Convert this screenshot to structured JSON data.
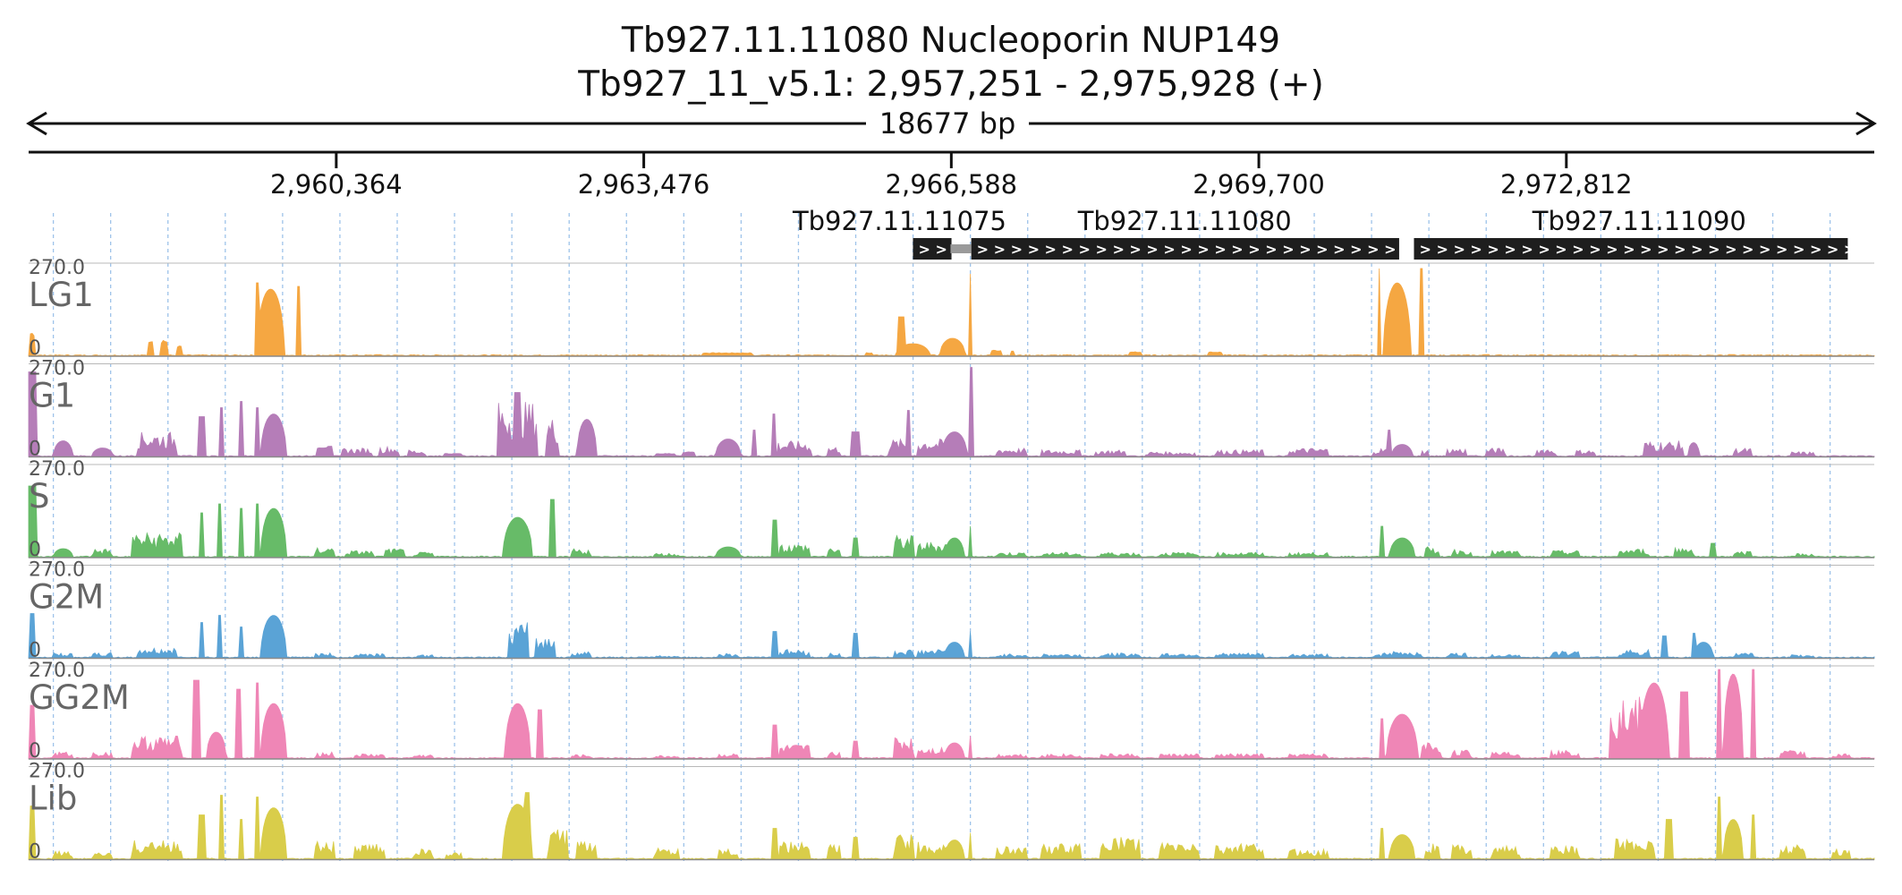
{
  "title": {
    "gene": "Tb927.11.11080  Nucleoporin NUP149",
    "locus": "Tb927_11_v5.1: 2,957,251 - 2,975,928 (+)"
  },
  "span_label": "18677 bp",
  "region": {
    "start": 2957251,
    "end": 2975928
  },
  "ticks": [
    {
      "pos": 2960364,
      "label": "2,960,364"
    },
    {
      "pos": 2963476,
      "label": "2,963,476"
    },
    {
      "pos": 2966588,
      "label": "2,966,588"
    },
    {
      "pos": 2969700,
      "label": "2,969,700"
    },
    {
      "pos": 2972812,
      "label": "2,972,812"
    }
  ],
  "genes": [
    {
      "id": "Tb927.11.11075",
      "label": "Tb927.11.11075",
      "start": 2966200,
      "end": 2966590,
      "strand": "+"
    },
    {
      "id": "Tb927.11.11080",
      "label": "Tb927.11.11080",
      "start": 2966790,
      "end": 2971120,
      "strand": "+"
    },
    {
      "id": "Tb927.11.11090",
      "label": "Tb927.11.11090",
      "start": 2971270,
      "end": 2975660,
      "strand": "+"
    }
  ],
  "gene_stub": {
    "start": 2966580,
    "end": 2966790
  },
  "tracks": [
    {
      "name": "LG1",
      "color": "#f5a742",
      "max_label": "270.0",
      "min_label": "0"
    },
    {
      "name": "G1",
      "color": "#b57db8",
      "max_label": "270.0",
      "min_label": "0"
    },
    {
      "name": "S",
      "color": "#67bb68",
      "max_label": "270.0",
      "min_label": "0"
    },
    {
      "name": "G2M",
      "color": "#5aa3d6",
      "max_label": "270.0",
      "min_label": "0"
    },
    {
      "name": "GG2M",
      "color": "#ef86b6",
      "max_label": "270.0",
      "min_label": "0"
    },
    {
      "name": "Lib",
      "color": "#d9cd4a",
      "max_label": "270.0",
      "min_label": "0"
    }
  ],
  "colors": {
    "grid": "#9ec3ea",
    "gene_fill": "#1e1e1e",
    "axis": "#111111"
  }
}
